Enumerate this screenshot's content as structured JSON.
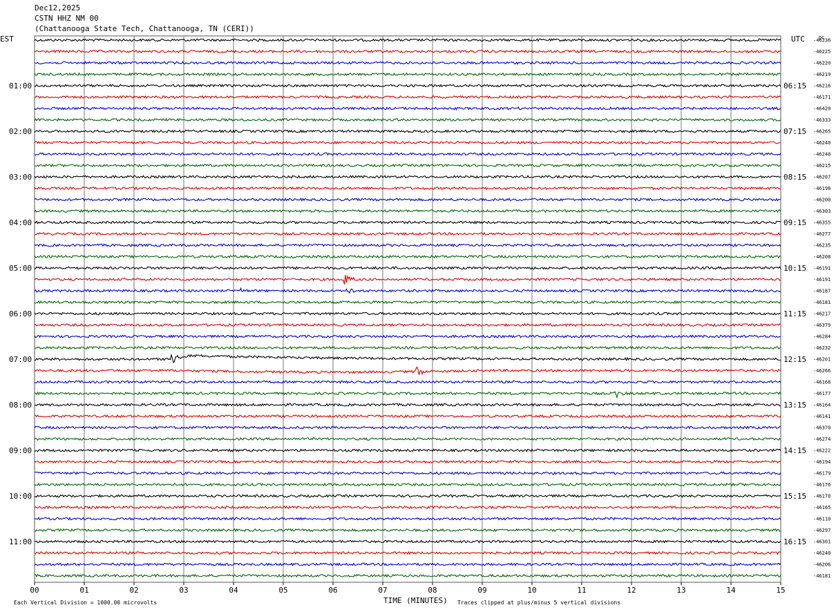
{
  "header": {
    "date": "Dec12,2025",
    "station": "CSTN HHZ NM 00",
    "location": "(Chattanooga State Tech, Chattanooga, TN (CERI))"
  },
  "labels": {
    "left_zone": "EST",
    "right_zone": "UTC",
    "dc_header": "DC",
    "xlabel": "TIME (MINUTES)",
    "scale_note": "Each Vertical Division = 1000.00 microvolts",
    "clip_note": "Traces clipped at plus/minus 5 vertical divisions"
  },
  "colors": {
    "trace_cycle": [
      "#000000",
      "#dd0000",
      "#0000cc",
      "#006600"
    ],
    "grid": "#555555"
  },
  "chart_data": {
    "type": "line",
    "title": "CSTN HHZ NM 00",
    "xlabel": "TIME (MINUTES)",
    "ylabel": "",
    "xlim": [
      0,
      15
    ],
    "x_ticks": [
      "00",
      "01",
      "02",
      "03",
      "04",
      "05",
      "06",
      "07",
      "08",
      "09",
      "10",
      "11",
      "12",
      "13",
      "14",
      "15"
    ],
    "minutes_per_trace": 15,
    "trace_count": 48,
    "left_hour_labels": [
      {
        "row": 4,
        "label": "01:00"
      },
      {
        "row": 8,
        "label": "02:00"
      },
      {
        "row": 12,
        "label": "03:00"
      },
      {
        "row": 16,
        "label": "04:00"
      },
      {
        "row": 20,
        "label": "05:00"
      },
      {
        "row": 24,
        "label": "06:00"
      },
      {
        "row": 28,
        "label": "07:00"
      },
      {
        "row": 32,
        "label": "08:00"
      },
      {
        "row": 36,
        "label": "09:00"
      },
      {
        "row": 40,
        "label": "10:00"
      },
      {
        "row": 44,
        "label": "11:00"
      }
    ],
    "right_hour_labels": [
      {
        "row": 4,
        "label": "06:15"
      },
      {
        "row": 8,
        "label": "07:15"
      },
      {
        "row": 12,
        "label": "08:15"
      },
      {
        "row": 16,
        "label": "09:15"
      },
      {
        "row": 20,
        "label": "10:15"
      },
      {
        "row": 24,
        "label": "11:15"
      },
      {
        "row": 28,
        "label": "12:15"
      },
      {
        "row": 32,
        "label": "13:15"
      },
      {
        "row": 36,
        "label": "14:15"
      },
      {
        "row": 40,
        "label": "15:15"
      },
      {
        "row": 44,
        "label": "16:15"
      }
    ],
    "dc_offsets": [
      "-46236",
      "-46225",
      "-46220",
      "-46219",
      "-46216",
      "-46171",
      "-46420",
      "-46333",
      "-46265",
      "-46240",
      "-46248",
      "-46215",
      "-46207",
      "-46198",
      "-46200",
      "-46303",
      "-46355",
      "-46277",
      "-46235",
      "-46208",
      "-46191",
      "-46191",
      "-46187",
      "-46181",
      "-46217",
      "-46379",
      "-46284",
      "-46232",
      "-46201",
      "-46266",
      "-46168",
      "-46177",
      "-46164",
      "-46141",
      "-46370",
      "-46274",
      "-46222",
      "-46194",
      "-46179",
      "-46176",
      "-46170",
      "-46165",
      "-46110",
      "-46297",
      "-46301",
      "-46240",
      "-46206",
      "-46181"
    ],
    "events": [
      {
        "row": 21,
        "minute": 6.25,
        "amplitude": 1.1
      },
      {
        "row": 22,
        "minute": 4.15,
        "amplitude": 0.4
      },
      {
        "row": 22,
        "minute": 6.3,
        "amplitude": 0.6
      },
      {
        "row": 28,
        "minute": 2.8,
        "amplitude": 1.6
      },
      {
        "row": 29,
        "minute": 7.7,
        "amplitude": 0.9
      },
      {
        "row": 31,
        "minute": 11.7,
        "amplitude": 0.7
      }
    ]
  }
}
